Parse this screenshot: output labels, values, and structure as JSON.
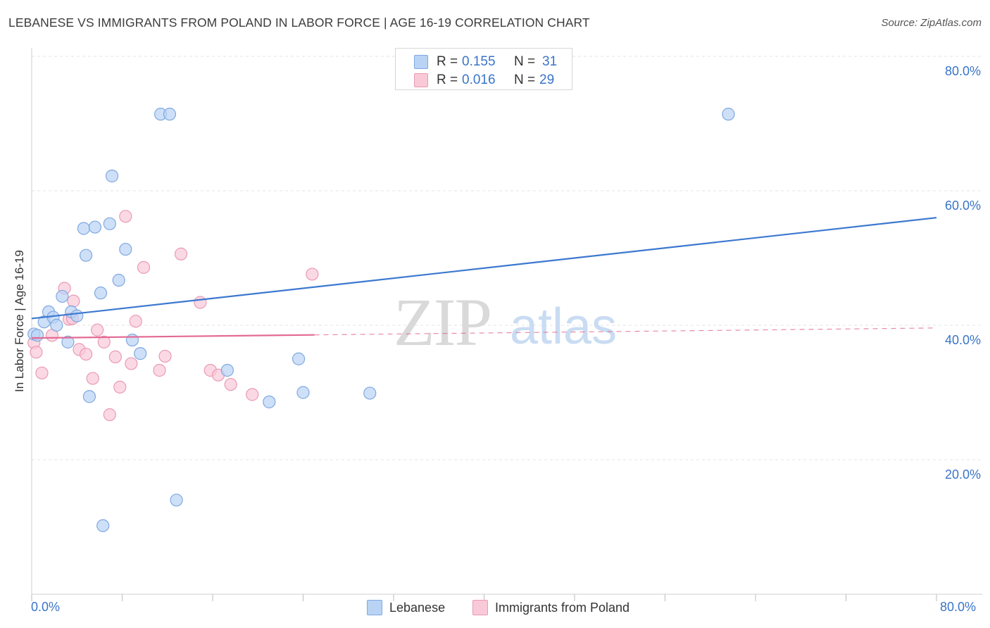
{
  "title": "LEBANESE VS IMMIGRANTS FROM POLAND IN LABOR FORCE | AGE 16-19 CORRELATION CHART",
  "source": "Source: ZipAtlas.com",
  "watermark": {
    "zip": "ZIP",
    "atlas": "atlas"
  },
  "legend": {
    "rows": [
      {
        "r_label": "R =",
        "r_value": "0.155",
        "n_label": "N =",
        "n_value": "31"
      },
      {
        "r_label": "R =",
        "r_value": "0.016",
        "n_label": "N =",
        "n_value": "29"
      }
    ]
  },
  "bottom_legend": [
    "Lebanese",
    "Immigrants from Poland"
  ],
  "x_axis_labels": {
    "left": "0.0%",
    "right": "80.0%"
  },
  "colors": {
    "blue_fill": "#b9d3f5",
    "blue_stroke": "#7fa8e0",
    "blue_line": "#3c78d0",
    "pink_fill": "#f9c9d8",
    "pink_stroke": "#e99ab3",
    "pink_line": "#e36a94",
    "tick_text": "#3a74c8",
    "grid": "#e3e3e3"
  },
  "chart_data": {
    "type": "scatter",
    "title": "LEBANESE VS IMMIGRANTS FROM POLAND IN LABOR FORCE | AGE 16-19 CORRELATION CHART",
    "xlabel": "",
    "ylabel": "In Labor Force | Age 16-19",
    "xlim": [
      0,
      80
    ],
    "ylim": [
      0,
      80
    ],
    "y_ticks": [
      {
        "value": 20,
        "label": "20.0%"
      },
      {
        "value": 40,
        "label": "40.0%"
      },
      {
        "value": 60,
        "label": "60.0%"
      },
      {
        "value": 80,
        "label": "80.0%"
      }
    ],
    "series": [
      {
        "name": "Lebanese",
        "r": 0.155,
        "n": 31,
        "trend": {
          "x0": 0,
          "y0": 41.0,
          "x1": 80,
          "y1": 56.0,
          "solid_to": 80
        },
        "points": [
          [
            0.2,
            38.7
          ],
          [
            0.5,
            38.5
          ],
          [
            1.1,
            40.5
          ],
          [
            1.5,
            42.0
          ],
          [
            1.9,
            41.2
          ],
          [
            2.2,
            40.0
          ],
          [
            2.7,
            44.3
          ],
          [
            3.2,
            37.5
          ],
          [
            3.5,
            42.0
          ],
          [
            4.0,
            41.4
          ],
          [
            4.6,
            54.4
          ],
          [
            4.8,
            50.4
          ],
          [
            5.1,
            29.4
          ],
          [
            5.6,
            54.6
          ],
          [
            6.1,
            44.8
          ],
          [
            6.3,
            10.2
          ],
          [
            6.9,
            55.1
          ],
          [
            7.1,
            62.2
          ],
          [
            7.7,
            46.7
          ],
          [
            8.3,
            51.3
          ],
          [
            8.9,
            37.8
          ],
          [
            9.6,
            35.8
          ],
          [
            11.4,
            71.4
          ],
          [
            12.2,
            71.4
          ],
          [
            12.8,
            14.0
          ],
          [
            17.3,
            33.3
          ],
          [
            21.0,
            28.6
          ],
          [
            23.6,
            35.0
          ],
          [
            24.0,
            30.0
          ],
          [
            29.9,
            29.9
          ],
          [
            61.6,
            71.4
          ]
        ]
      },
      {
        "name": "Immigrants from Poland",
        "r": 0.016,
        "n": 29,
        "trend": {
          "x0": 0,
          "y0": 38.1,
          "x1": 80,
          "y1": 39.6,
          "solid_to": 25
        },
        "points": [
          [
            0.2,
            37.4
          ],
          [
            0.4,
            36.0
          ],
          [
            0.9,
            32.9
          ],
          [
            1.8,
            38.5
          ],
          [
            2.9,
            45.5
          ],
          [
            3.3,
            40.9
          ],
          [
            3.7,
            43.6
          ],
          [
            4.2,
            36.4
          ],
          [
            4.8,
            35.7
          ],
          [
            5.4,
            32.1
          ],
          [
            5.8,
            39.3
          ],
          [
            6.4,
            37.5
          ],
          [
            6.9,
            26.7
          ],
          [
            7.4,
            35.3
          ],
          [
            7.8,
            30.8
          ],
          [
            8.3,
            56.2
          ],
          [
            8.8,
            34.3
          ],
          [
            9.2,
            40.6
          ],
          [
            9.9,
            48.6
          ],
          [
            11.3,
            33.3
          ],
          [
            11.8,
            35.4
          ],
          [
            13.2,
            50.6
          ],
          [
            14.9,
            43.4
          ],
          [
            15.8,
            33.3
          ],
          [
            16.5,
            32.6
          ],
          [
            17.6,
            31.2
          ],
          [
            19.5,
            29.7
          ],
          [
            24.8,
            47.6
          ],
          [
            3.6,
            41.0
          ]
        ]
      }
    ]
  }
}
